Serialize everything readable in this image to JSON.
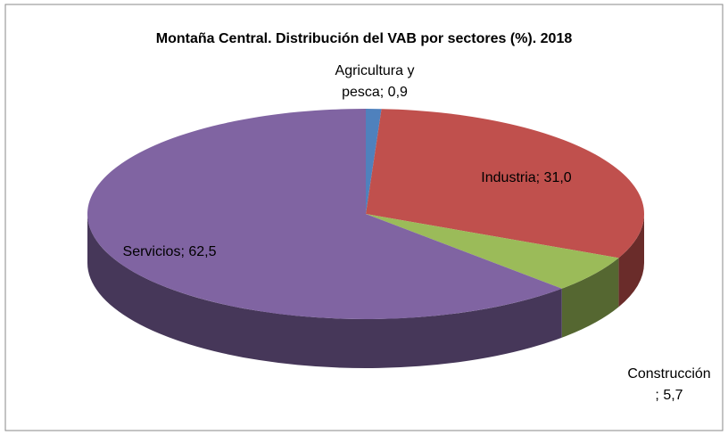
{
  "chart_data": {
    "type": "pie3d",
    "title": "Montaña Central. Distribución del VAB por sectores (%). 2018",
    "values": [
      0.9,
      31.0,
      5.7,
      62.5
    ],
    "value_labels": [
      "Agricultura y\npesca; 0,9",
      "Industria; 31,0",
      "Construcción\n; 5,7",
      "Servicios; 62,5"
    ],
    "colors": [
      "#4f81bd",
      "#c0504d",
      "#9bbb59",
      "#8064a2"
    ]
  }
}
